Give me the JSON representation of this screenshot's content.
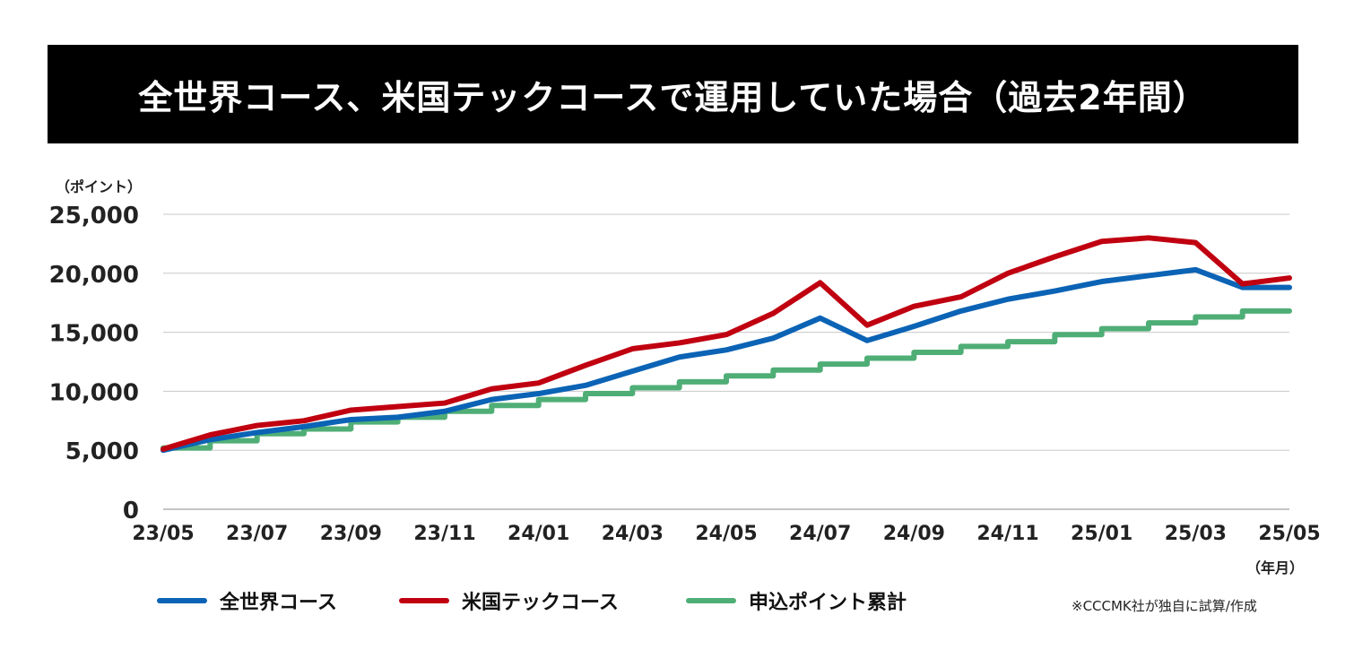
{
  "title": "全世界コース、米国テックコースで運用していた場合（過去2年間）",
  "note": "※CCCMK社が独自に試算/作成",
  "colors": {
    "world": "#0b63b5",
    "tech": "#c00010",
    "applied": "#4fae76",
    "grid": "#c8c8c8"
  },
  "chart_data": {
    "type": "line",
    "ylabel": "（ポイント）",
    "xlabel": "（年月）",
    "ylim": [
      0,
      25000
    ],
    "yticks": [
      "0",
      "5,000",
      "10,000",
      "15,000",
      "20,000",
      "25,000"
    ],
    "ytick_values": [
      0,
      5000,
      10000,
      15000,
      20000,
      25000
    ],
    "x_categories": [
      "23/05",
      "23/07",
      "23/09",
      "23/11",
      "24/01",
      "24/03",
      "24/05",
      "24/07",
      "24/09",
      "24/11",
      "25/01",
      "25/03",
      "25/05"
    ],
    "months": [
      "23/05",
      "23/06",
      "23/07",
      "23/08",
      "23/09",
      "23/10",
      "23/11",
      "23/12",
      "24/01",
      "24/02",
      "24/03",
      "24/04",
      "24/05",
      "24/06",
      "24/07",
      "24/08",
      "24/09",
      "24/10",
      "24/11",
      "24/12",
      "25/01",
      "25/02",
      "25/03",
      "25/04",
      "25/05"
    ],
    "grid": true,
    "legend_position": "bottom",
    "series": [
      {
        "name": "全世界コース",
        "key": "world",
        "x": [
          "23/05",
          "23/06",
          "23/07",
          "23/08",
          "23/09",
          "23/10",
          "23/11",
          "23/12",
          "24/01",
          "24/02",
          "24/03",
          "24/04",
          "24/05",
          "24/06",
          "24/07",
          "24/08",
          "24/09",
          "24/10",
          "24/11",
          "24/12",
          "25/01",
          "25/02",
          "25/03",
          "25/04",
          "25/05"
        ],
        "values": [
          5000,
          5900,
          6500,
          7000,
          7600,
          7800,
          8300,
          9300,
          9800,
          10500,
          11700,
          12900,
          13500,
          14500,
          16200,
          14300,
          15500,
          16800,
          17800,
          18500,
          19300,
          19800,
          20300,
          18800,
          18800
        ]
      },
      {
        "name": "米国テックコース",
        "key": "tech",
        "x": [
          "23/05",
          "23/06",
          "23/07",
          "23/08",
          "23/09",
          "23/10",
          "23/11",
          "23/12",
          "24/01",
          "24/02",
          "24/03",
          "24/04",
          "24/05",
          "24/06",
          "24/07",
          "24/08",
          "24/09",
          "24/10",
          "24/11",
          "24/12",
          "25/01",
          "25/02",
          "25/03",
          "25/04",
          "25/05"
        ],
        "values": [
          5100,
          6300,
          7100,
          7500,
          8400,
          8700,
          9000,
          10200,
          10700,
          12200,
          13600,
          14100,
          14800,
          16600,
          19200,
          15600,
          17200,
          18000,
          20000,
          21400,
          22700,
          23000,
          22600,
          19100,
          19600
        ]
      },
      {
        "name": "申込ポイント累計",
        "key": "applied",
        "x": [
          "23/05",
          "23/06",
          "23/07",
          "23/08",
          "23/09",
          "23/10",
          "23/11",
          "23/12",
          "24/01",
          "24/02",
          "24/03",
          "24/04",
          "24/05",
          "24/06",
          "24/07",
          "24/08",
          "24/09",
          "24/10",
          "24/11",
          "24/12",
          "25/01",
          "25/02",
          "25/03",
          "25/04",
          "25/05"
        ],
        "values": [
          5200,
          5800,
          6400,
          6800,
          7400,
          7800,
          8300,
          8800,
          9300,
          9800,
          10300,
          10800,
          11300,
          11800,
          12300,
          12800,
          13300,
          13800,
          14200,
          14800,
          15300,
          15800,
          16300,
          16800,
          16800
        ]
      }
    ]
  }
}
